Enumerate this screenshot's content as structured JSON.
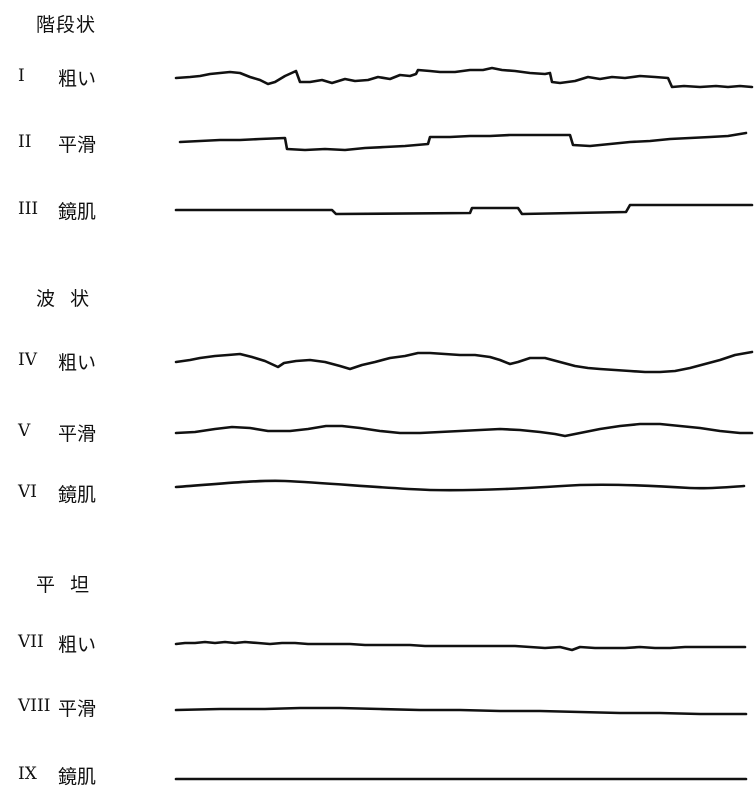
{
  "groups": [
    {
      "heading": "階段状",
      "rows": [
        {
          "numeral": "I",
          "label": "粗い"
        },
        {
          "numeral": "II",
          "label": "平滑"
        },
        {
          "numeral": "III",
          "label": "鏡肌"
        }
      ]
    },
    {
      "heading": "波  状",
      "rows": [
        {
          "numeral": "IV",
          "label": "粗い"
        },
        {
          "numeral": "V",
          "label": "平滑"
        },
        {
          "numeral": "VI",
          "label": "鏡肌"
        }
      ]
    },
    {
      "heading": "平  坦",
      "rows": [
        {
          "numeral": "VII",
          "label": "粗い"
        },
        {
          "numeral": "VIII",
          "label": "平滑"
        },
        {
          "numeral": "IX",
          "label": "鏡肌"
        }
      ]
    }
  ]
}
